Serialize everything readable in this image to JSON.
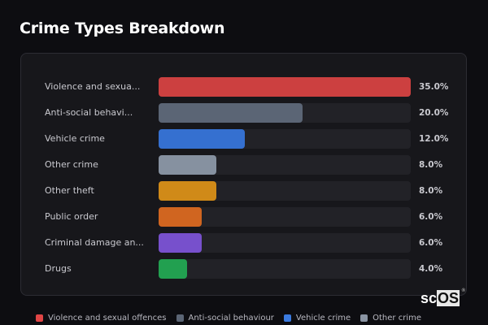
{
  "header": {
    "title": "Crime Types Breakdown"
  },
  "rows": [
    {
      "label": "Violence and sexua...",
      "full": "Violence and sexual offences",
      "value": 35.0,
      "pct": "35.0%",
      "color": "#cc4040"
    },
    {
      "label": "Anti-social behavi...",
      "full": "Anti-social behaviour",
      "value": 20.0,
      "pct": "20.0%",
      "color": "#5b6575"
    },
    {
      "label": "Vehicle crime",
      "full": "Vehicle crime",
      "value": 12.0,
      "pct": "12.0%",
      "color": "#3570d0"
    },
    {
      "label": "Other crime",
      "full": "Other crime",
      "value": 8.0,
      "pct": "8.0%",
      "color": "#8691a0"
    },
    {
      "label": "Other theft",
      "full": "Other theft",
      "value": 8.0,
      "pct": "8.0%",
      "color": "#d08a18"
    },
    {
      "label": "Public order",
      "full": "Public order",
      "value": 6.0,
      "pct": "6.0%",
      "color": "#d06520"
    },
    {
      "label": "Criminal damage an...",
      "full": "Criminal damage and arson",
      "value": 6.0,
      "pct": "6.0%",
      "color": "#7750cc"
    },
    {
      "label": "Drugs",
      "full": "Drugs",
      "value": 4.0,
      "pct": "4.0%",
      "color": "#22a050"
    }
  ],
  "legend": [
    {
      "label": "Violence and sexual offences",
      "color": "#e04545"
    },
    {
      "label": "Anti-social behaviour",
      "color": "#5b6575"
    },
    {
      "label": "Vehicle crime",
      "color": "#3b7be0"
    },
    {
      "label": "Other crime",
      "color": "#8a94a3"
    }
  ],
  "logo": {
    "left": "sc",
    "right": "OS",
    "mark": "®"
  },
  "chart_data": {
    "type": "bar",
    "orientation": "horizontal",
    "title": "Crime Types Breakdown",
    "categories": [
      "Violence and sexual offences",
      "Anti-social behaviour",
      "Vehicle crime",
      "Other crime",
      "Other theft",
      "Public order",
      "Criminal damage and arson",
      "Drugs"
    ],
    "values": [
      35.0,
      20.0,
      12.0,
      8.0,
      8.0,
      6.0,
      6.0,
      4.0
    ],
    "unit": "%",
    "xlim": [
      0,
      35
    ],
    "grid": false,
    "legend_position": "bottom"
  }
}
